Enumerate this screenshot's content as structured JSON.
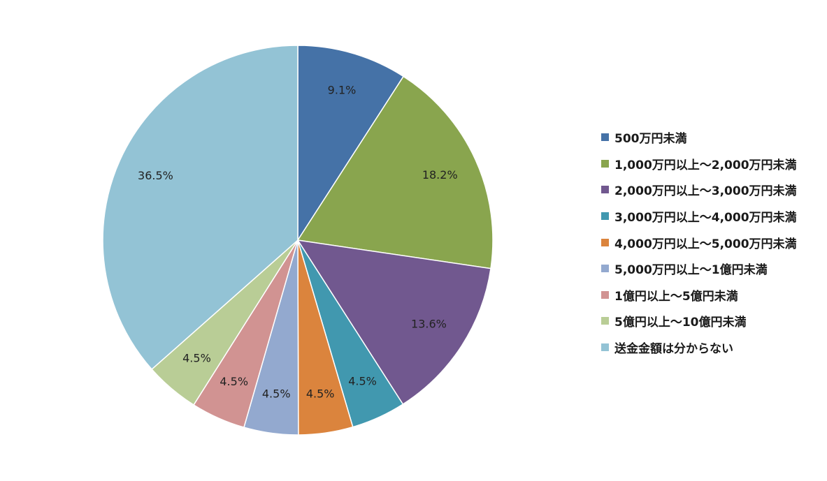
{
  "chart_data": {
    "type": "pie",
    "slices": [
      {
        "label": "500万円未満",
        "value": 9.1,
        "display": "9.1%",
        "color": "#4572A7"
      },
      {
        "label": "1,000万円以上～2,000万円未満",
        "value": 18.2,
        "display": "18.2%",
        "color": "#89A54E"
      },
      {
        "label": "2,000万円以上～3,000万円未満",
        "value": 13.6,
        "display": "13.6%",
        "color": "#71588F"
      },
      {
        "label": "3,000万円以上～4,000万円未満",
        "value": 4.5,
        "display": "4.5%",
        "color": "#4198AF"
      },
      {
        "label": "4,000万円以上～5,000万円未満",
        "value": 4.5,
        "display": "4.5%",
        "color": "#DB843D"
      },
      {
        "label": "5,000万円以上～1億円未満",
        "value": 4.5,
        "display": "4.5%",
        "color": "#93A9CF"
      },
      {
        "label": "1億円以上～5億円未満",
        "value": 4.5,
        "display": "4.5%",
        "color": "#D19392"
      },
      {
        "label": "5億円以上～10億円未満",
        "value": 4.5,
        "display": "4.5%",
        "color": "#B9CD96"
      },
      {
        "label": "送金金額は分からない",
        "value": 36.5,
        "display": "36.5%",
        "color": "#93C3D5"
      }
    ],
    "start": "12 o'clock",
    "direction": "clockwise",
    "legend_position": "right"
  }
}
